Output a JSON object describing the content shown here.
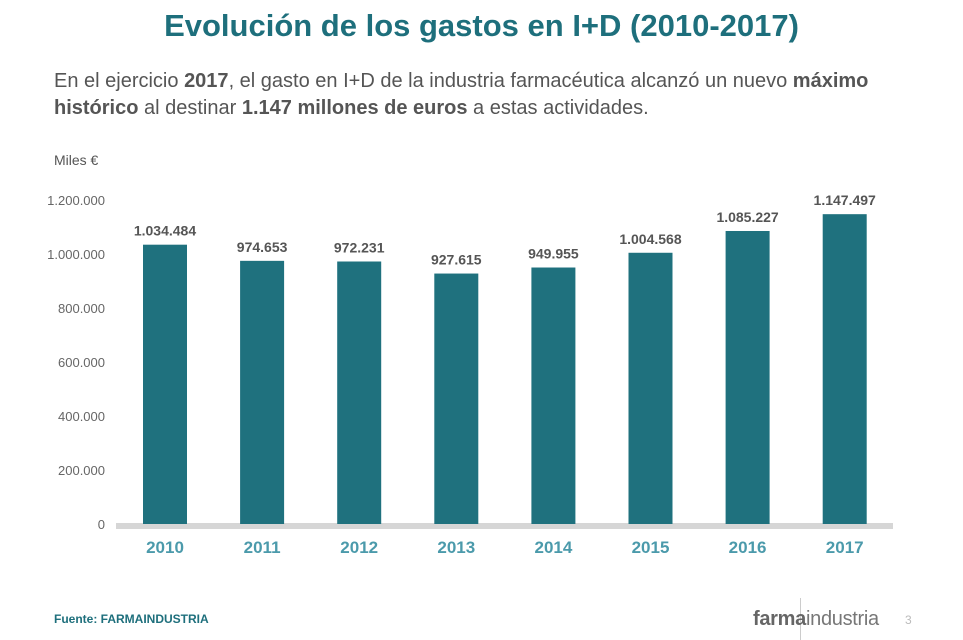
{
  "title": "Evolución de los gastos en I+D (2010-2017)",
  "subtitle": {
    "p1": "En el ejercicio ",
    "b1": "2017",
    "p2": ", el gasto en I+D de la industria farmacéutica alcanzó un nuevo ",
    "b2": "máximo histórico",
    "p3": " al destinar ",
    "b3": "1.147 millones de euros",
    "p4": " a estas actividades."
  },
  "chart_data": {
    "type": "bar",
    "ylabel": "Miles €",
    "categories": [
      "2010",
      "2011",
      "2012",
      "2013",
      "2014",
      "2015",
      "2016",
      "2017"
    ],
    "values": [
      1034484,
      974653,
      972231,
      927615,
      949955,
      1004568,
      1085227,
      1147497
    ],
    "data_labels": [
      "1.034.484",
      "974.653",
      "972.231",
      "927.615",
      "949.955",
      "1.004.568",
      "1.085.227",
      "1.147.497"
    ],
    "ylim": [
      0,
      1200000
    ],
    "yticks": [
      0,
      200000,
      400000,
      600000,
      800000,
      1000000,
      1200000
    ],
    "ytick_labels": [
      "0",
      "200.000",
      "400.000",
      "600.000",
      "800.000",
      "1.000.000",
      "1.200.000"
    ],
    "grid": false,
    "colors": {
      "bar": "#1f717e",
      "year": "#4b9aab",
      "axis": "#d6d6d6"
    }
  },
  "footer": {
    "source_label": "Fuente: ",
    "source_name": "FARMAINDUSTRIA",
    "logo_bold": "farma",
    "logo_rest": "industria",
    "page_number": "3"
  }
}
